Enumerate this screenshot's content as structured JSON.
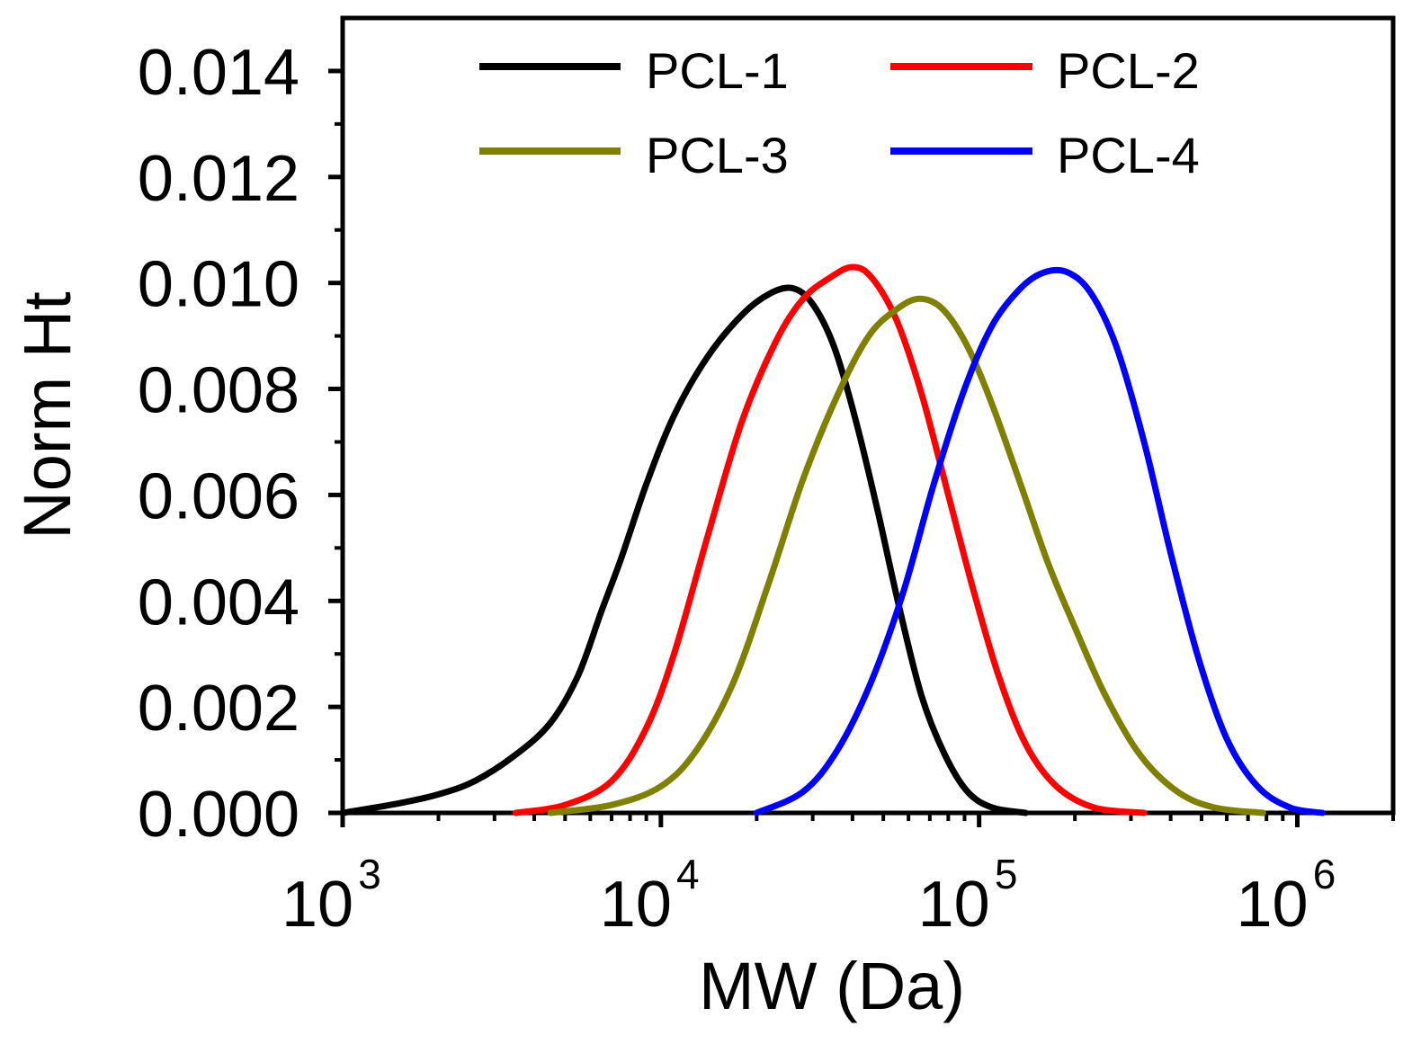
{
  "chart_data": {
    "type": "line",
    "title": "",
    "xlabel": "MW (Da)",
    "ylabel": "Norm Ht",
    "xscale": "log",
    "xlim": [
      1000,
      2000000
    ],
    "ylim": [
      0,
      0.015
    ],
    "x_ticks": [
      {
        "base": "10",
        "exp": "3"
      },
      {
        "base": "10",
        "exp": "4"
      },
      {
        "base": "10",
        "exp": "5"
      },
      {
        "base": "10",
        "exp": "6"
      }
    ],
    "y_ticks": [
      "0.000",
      "0.002",
      "0.004",
      "0.006",
      "0.008",
      "0.010",
      "0.012",
      "0.014"
    ],
    "legend_position": "top",
    "series": [
      {
        "name": "PCL-1",
        "color": "#000000",
        "points": [
          [
            1000,
            0
          ],
          [
            1500,
            0.00018
          ],
          [
            2000,
            0.00035
          ],
          [
            2600,
            0.0006
          ],
          [
            3500,
            0.0011
          ],
          [
            4500,
            0.0017
          ],
          [
            5500,
            0.0026
          ],
          [
            6500,
            0.0038
          ],
          [
            7500,
            0.0048
          ],
          [
            9000,
            0.0062
          ],
          [
            11000,
            0.0075
          ],
          [
            14000,
            0.0086
          ],
          [
            18000,
            0.0094
          ],
          [
            22000,
            0.0098
          ],
          [
            26000,
            0.0099
          ],
          [
            30000,
            0.0096
          ],
          [
            35000,
            0.0088
          ],
          [
            41000,
            0.0074
          ],
          [
            48000,
            0.0057
          ],
          [
            56000,
            0.0039
          ],
          [
            66000,
            0.0022
          ],
          [
            78000,
            0.0011
          ],
          [
            92000,
            0.0004
          ],
          [
            110000,
            0.0001
          ],
          [
            140000,
            0
          ]
        ]
      },
      {
        "name": "PCL-2",
        "color": "#ff0000",
        "points": [
          [
            3500,
            0
          ],
          [
            5000,
            0.00015
          ],
          [
            7000,
            0.0006
          ],
          [
            9000,
            0.0016
          ],
          [
            11000,
            0.003
          ],
          [
            14000,
            0.0052
          ],
          [
            18000,
            0.0074
          ],
          [
            23000,
            0.0089
          ],
          [
            28000,
            0.0097
          ],
          [
            34000,
            0.0101
          ],
          [
            40000,
            0.0103
          ],
          [
            46000,
            0.0101
          ],
          [
            55000,
            0.0093
          ],
          [
            66000,
            0.0079
          ],
          [
            80000,
            0.006
          ],
          [
            96000,
            0.0042
          ],
          [
            115000,
            0.0026
          ],
          [
            140000,
            0.0013
          ],
          [
            175000,
            0.0005
          ],
          [
            230000,
            0.0001
          ],
          [
            330000,
            0
          ]
        ]
      },
      {
        "name": "PCL-3",
        "color": "#808000",
        "points": [
          [
            4500,
            0
          ],
          [
            7000,
            0.00015
          ],
          [
            10000,
            0.0005
          ],
          [
            13000,
            0.0012
          ],
          [
            17000,
            0.0025
          ],
          [
            22000,
            0.0044
          ],
          [
            28000,
            0.0063
          ],
          [
            36000,
            0.0079
          ],
          [
            45000,
            0.009
          ],
          [
            55000,
            0.0095
          ],
          [
            65000,
            0.0097
          ],
          [
            77000,
            0.0095
          ],
          [
            92000,
            0.0088
          ],
          [
            110000,
            0.0077
          ],
          [
            135000,
            0.0062
          ],
          [
            165000,
            0.0047
          ],
          [
            200000,
            0.0035
          ],
          [
            250000,
            0.0022
          ],
          [
            320000,
            0.0011
          ],
          [
            420000,
            0.0004
          ],
          [
            550000,
            0.0001
          ],
          [
            780000,
            0
          ]
        ]
      },
      {
        "name": "PCL-4",
        "color": "#0000ff",
        "points": [
          [
            20000,
            0
          ],
          [
            28000,
            0.0004
          ],
          [
            36000,
            0.0012
          ],
          [
            46000,
            0.0025
          ],
          [
            58000,
            0.0042
          ],
          [
            72000,
            0.0062
          ],
          [
            90000,
            0.008
          ],
          [
            110000,
            0.0092
          ],
          [
            135000,
            0.0099
          ],
          [
            160000,
            0.0102
          ],
          [
            190000,
            0.0102
          ],
          [
            225000,
            0.0098
          ],
          [
            270000,
            0.0088
          ],
          [
            330000,
            0.007
          ],
          [
            400000,
            0.0049
          ],
          [
            490000,
            0.0029
          ],
          [
            600000,
            0.0014
          ],
          [
            750000,
            0.0005
          ],
          [
            950000,
            0.0001
          ],
          [
            1200000,
            0
          ]
        ]
      }
    ]
  }
}
